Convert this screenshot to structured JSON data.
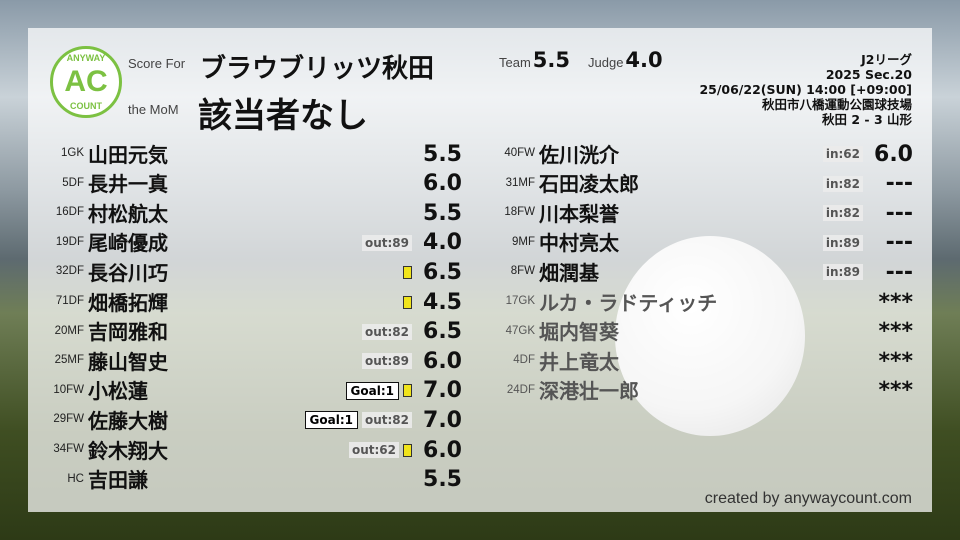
{
  "header": {
    "score_for_label": "Score For",
    "team": "ブラウブリッツ秋田",
    "mom_label": "the MoM",
    "mom": "該当者なし",
    "team_label": "Team",
    "team_score": "5.5",
    "judge_label": "Judge",
    "judge_score": "4.0",
    "logo": {
      "top": "ANYWAY",
      "mid": "AC",
      "bottom": "COUNT",
      "color": "#7cc142"
    }
  },
  "match": {
    "league": "J2リーグ",
    "section": "2025 Sec.20",
    "datetime": "25/06/22(SUN) 14:00 [+09:00]",
    "venue": "秋田市八橋運動公園球技場",
    "result": "秋田 2 - 3 山形"
  },
  "starters": [
    {
      "num": "1",
      "pos": "GK",
      "name": "山田元気",
      "score": "5.5"
    },
    {
      "num": "5",
      "pos": "DF",
      "name": "長井一真",
      "score": "6.0"
    },
    {
      "num": "16",
      "pos": "DF",
      "name": "村松航太",
      "score": "5.5"
    },
    {
      "num": "19",
      "pos": "DF",
      "name": "尾崎優成",
      "score": "4.0",
      "sub": "out:89"
    },
    {
      "num": "32",
      "pos": "DF",
      "name": "長谷川巧",
      "score": "6.5",
      "yellow": true
    },
    {
      "num": "71",
      "pos": "DF",
      "name": "畑橋拓輝",
      "score": "4.5",
      "yellow": true
    },
    {
      "num": "20",
      "pos": "MF",
      "name": "吉岡雅和",
      "score": "6.5",
      "sub": "out:82"
    },
    {
      "num": "25",
      "pos": "MF",
      "name": "藤山智史",
      "score": "6.0",
      "sub": "out:89"
    },
    {
      "num": "10",
      "pos": "FW",
      "name": "小松蓮",
      "score": "7.0",
      "goal": "Goal:1",
      "yellow": true
    },
    {
      "num": "29",
      "pos": "FW",
      "name": "佐藤大樹",
      "score": "7.0",
      "goal": "Goal:1",
      "sub": "out:82"
    },
    {
      "num": "34",
      "pos": "FW",
      "name": "鈴木翔大",
      "score": "6.0",
      "sub": "out:62",
      "yellow": true
    },
    {
      "num": "",
      "pos": "HC",
      "name": "吉田謙",
      "score": "5.5"
    }
  ],
  "bench": [
    {
      "num": "40",
      "pos": "FW",
      "name": "佐川洸介",
      "score": "6.0",
      "sub": "in:62"
    },
    {
      "num": "31",
      "pos": "MF",
      "name": "石田凌太郎",
      "score": "---",
      "sub": "in:82"
    },
    {
      "num": "18",
      "pos": "FW",
      "name": "川本梨誉",
      "score": "---",
      "sub": "in:82"
    },
    {
      "num": "9",
      "pos": "MF",
      "name": "中村亮太",
      "score": "---",
      "sub": "in:89"
    },
    {
      "num": "8",
      "pos": "FW",
      "name": "畑潤基",
      "score": "---",
      "sub": "in:89"
    },
    {
      "num": "17",
      "pos": "GK",
      "name": "ルカ・ラドティッチ",
      "score": "***",
      "unused": true
    },
    {
      "num": "47",
      "pos": "GK",
      "name": "堀内智葵",
      "score": "***",
      "unused": true
    },
    {
      "num": "4",
      "pos": "DF",
      "name": "井上竜太",
      "score": "***",
      "unused": true
    },
    {
      "num": "24",
      "pos": "DF",
      "name": "深港壮一郎",
      "score": "***",
      "unused": true
    }
  ],
  "footer": {
    "credit": "created by anywaycount.com"
  }
}
